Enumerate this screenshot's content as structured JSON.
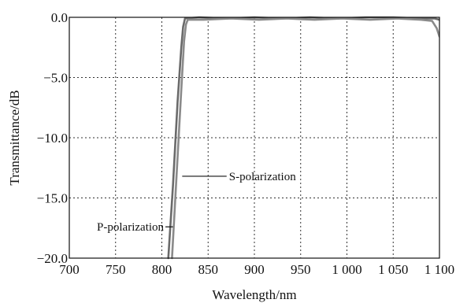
{
  "chart_data": {
    "type": "line",
    "title": "",
    "xlabel": "Wavelength/nm",
    "ylabel": "Transmittance/dB",
    "xlim": [
      700,
      1100
    ],
    "ylim": [
      -20,
      0
    ],
    "grid": true,
    "x_ticks": [
      700,
      750,
      800,
      850,
      900,
      950,
      1000,
      1050,
      1100
    ],
    "x_tick_labels": [
      "700",
      "750",
      "800",
      "850",
      "900",
      "950",
      "1 000",
      "1 050",
      "1 100"
    ],
    "y_ticks": [
      0,
      -5,
      -10,
      -15,
      -20
    ],
    "y_tick_labels": [
      "0.0",
      "−5.0",
      "−10.0",
      "−15.0",
      "−20.0"
    ],
    "series": [
      {
        "name": "S-polarization",
        "color": "#6a6a6a",
        "x": [
          807,
          812,
          817,
          821,
          823,
          825,
          840,
          870,
          900,
          930,
          960,
          990,
          1020,
          1050,
          1080,
          1095,
          1100
        ],
        "y": [
          -20,
          -14,
          -7,
          -2.5,
          -0.8,
          -0.1,
          0,
          -0.1,
          0,
          -0.1,
          0,
          -0.1,
          0,
          0,
          -0.1,
          -0.1,
          -0.2
        ]
      },
      {
        "name": "P-polarization",
        "color": "#8a8a8a",
        "x": [
          811,
          816,
          821,
          824,
          826,
          828,
          845,
          875,
          905,
          935,
          965,
          995,
          1025,
          1055,
          1080,
          1092,
          1097,
          1100
        ],
        "y": [
          -20,
          -13,
          -6,
          -2,
          -0.6,
          -0.2,
          -0.2,
          -0.1,
          -0.2,
          -0.1,
          -0.2,
          -0.1,
          -0.2,
          -0.1,
          -0.2,
          -0.3,
          -0.9,
          -1.6
        ]
      }
    ],
    "annotations": [
      {
        "text": "S-polarization",
        "series": "S-polarization",
        "at": [
          822,
          -13.2
        ],
        "label_at": [
          870,
          -13.2
        ]
      },
      {
        "text": "P-polarization",
        "series": "P-polarization",
        "at": [
          812,
          -17.4
        ],
        "label_at": [
          766,
          -17.4
        ]
      }
    ]
  }
}
